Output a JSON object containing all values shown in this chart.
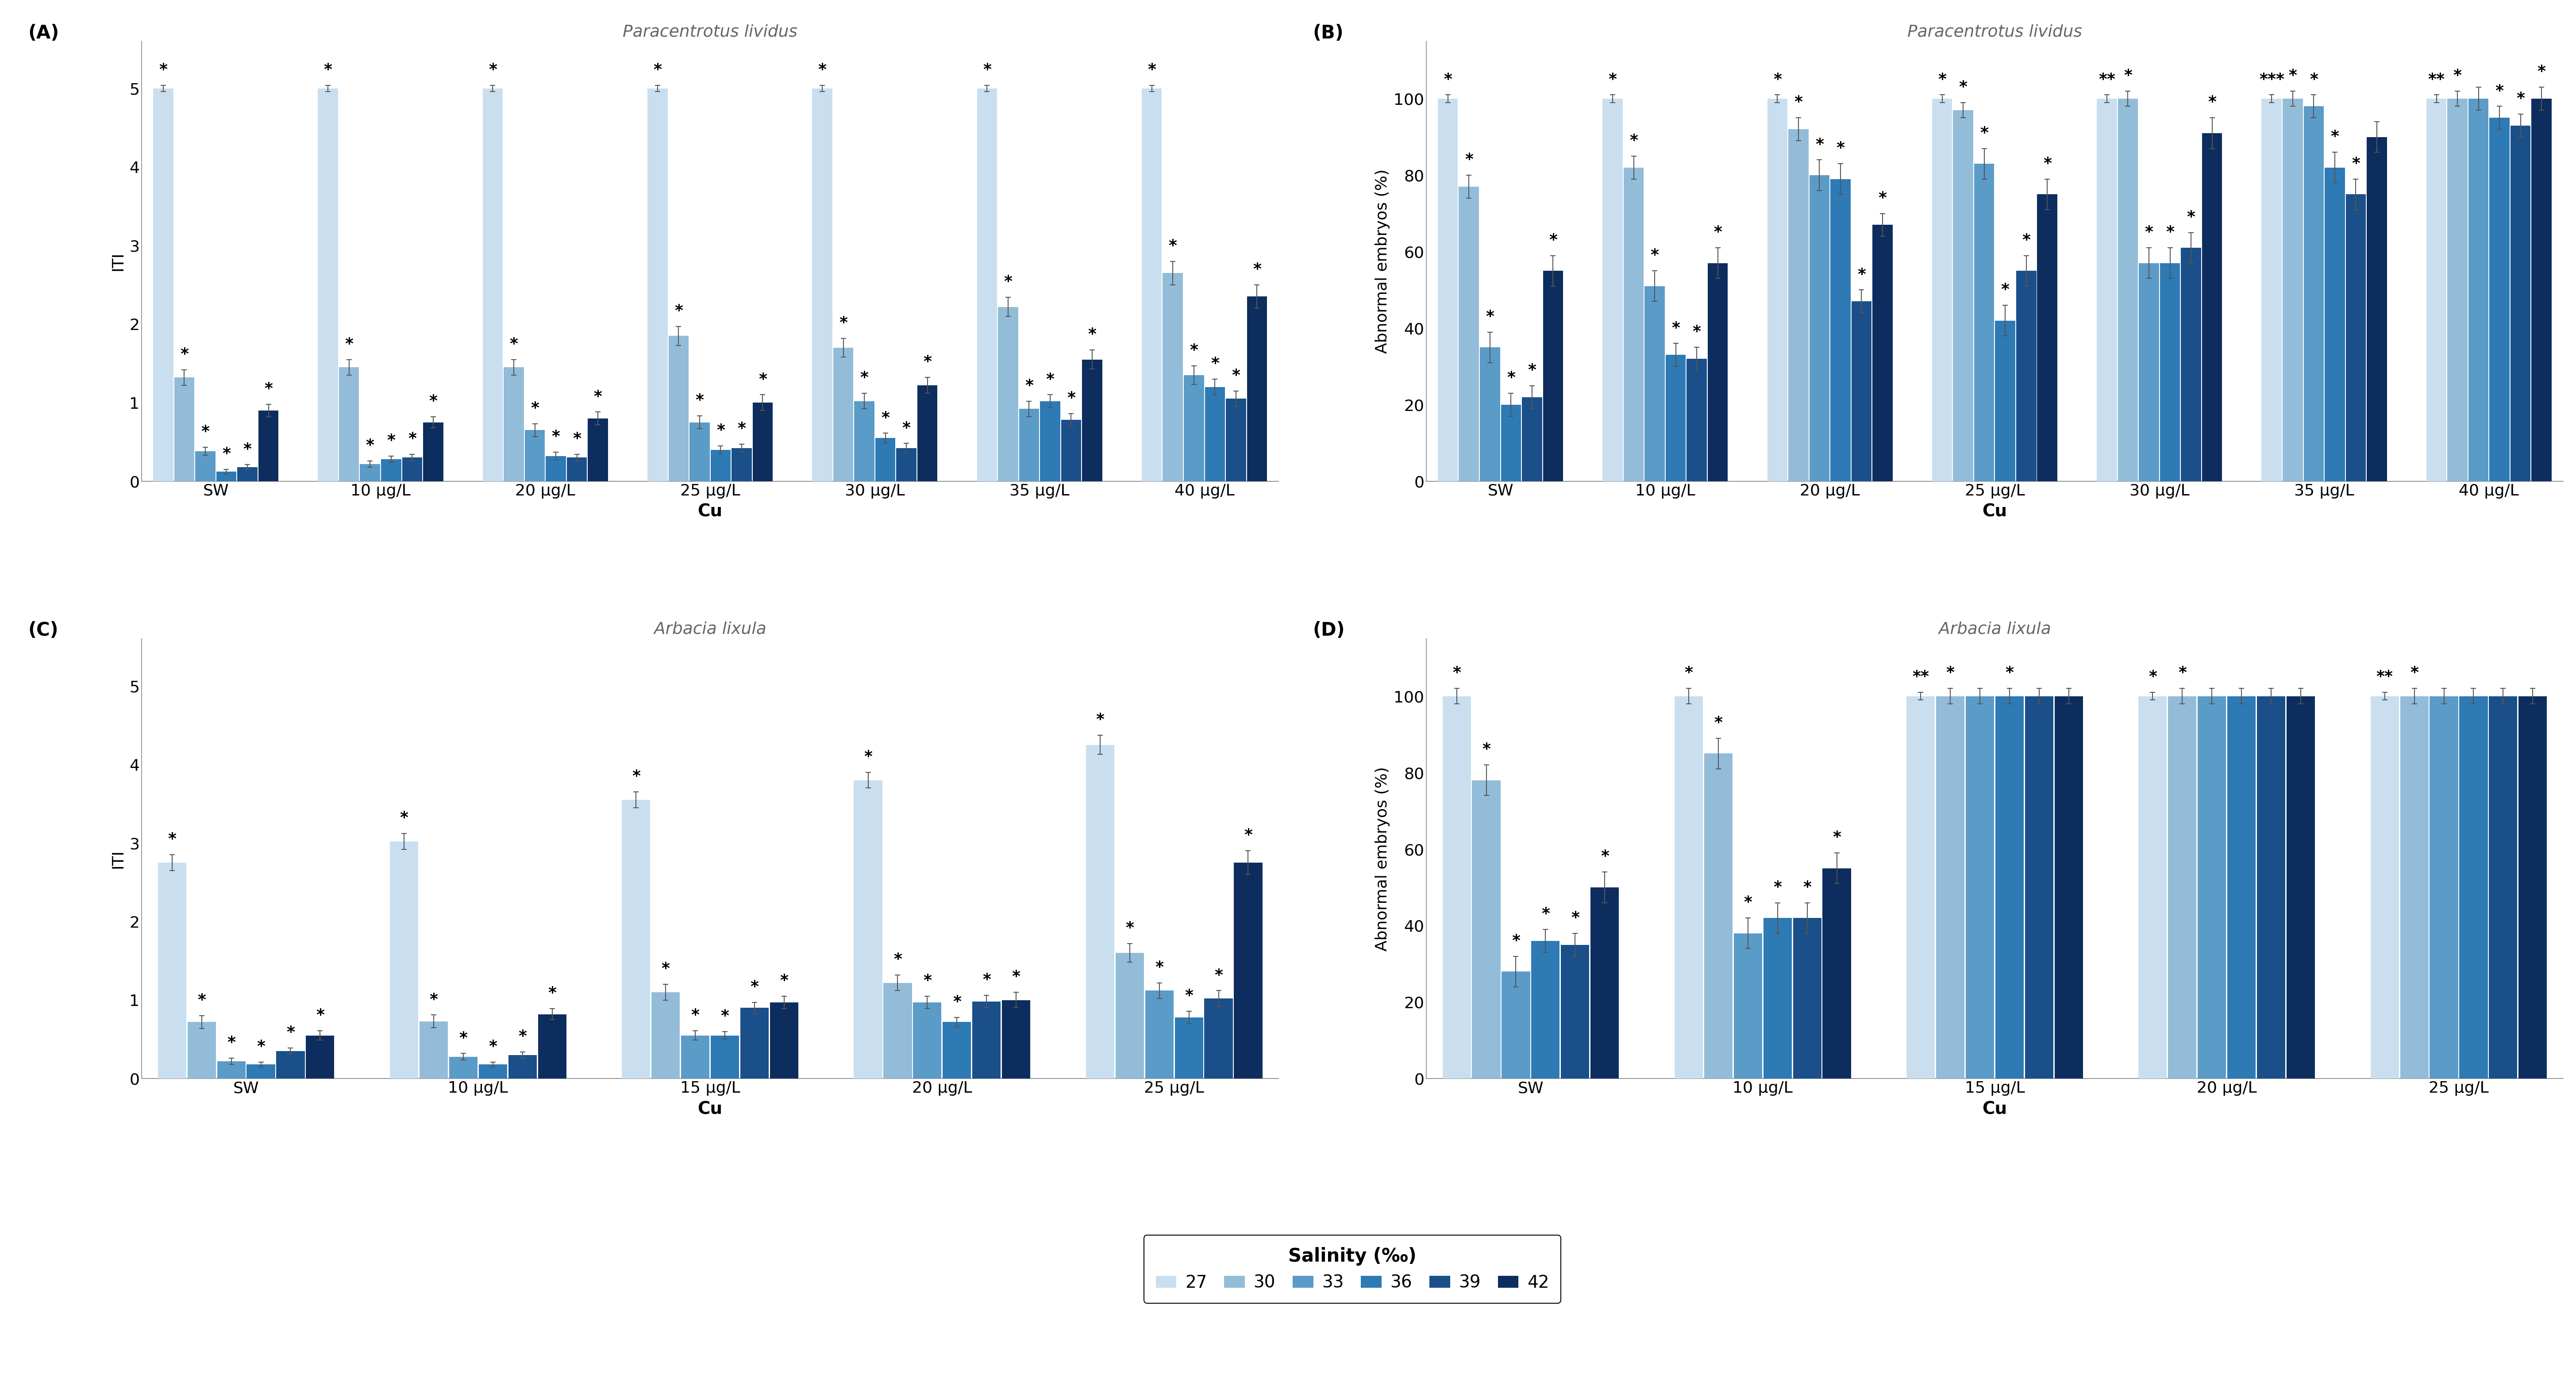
{
  "colors": {
    "27": "#c9dff0",
    "30": "#93bcd8",
    "33": "#5b9bc8",
    "36": "#2d7ab5",
    "39": "#1a4f8a",
    "42": "#0d2d5e"
  },
  "panel_A": {
    "title": "Paracentrotus lividus",
    "xlabel": "Cu",
    "ylabel": "ITI",
    "ylim": [
      0,
      5.6
    ],
    "yticks": [
      0,
      1,
      2,
      3,
      4,
      5
    ],
    "groups": [
      "SW",
      "10 μg/L",
      "20 μg/L",
      "25 μg/L",
      "30 μg/L",
      "35 μg/L",
      "40 μg/L"
    ],
    "values": {
      "27": [
        5.0,
        5.0,
        5.0,
        5.0,
        5.0,
        5.0,
        5.0
      ],
      "30": [
        1.32,
        1.45,
        1.45,
        1.85,
        1.7,
        2.22,
        2.65
      ],
      "33": [
        0.38,
        0.22,
        0.65,
        0.75,
        1.02,
        0.92,
        1.35
      ],
      "36": [
        0.12,
        0.28,
        0.32,
        0.4,
        0.55,
        1.02,
        1.2
      ],
      "39": [
        0.18,
        0.3,
        0.3,
        0.42,
        0.42,
        0.78,
        1.05
      ],
      "42": [
        0.9,
        0.75,
        0.8,
        1.0,
        1.22,
        1.55,
        2.35
      ]
    },
    "errors": {
      "27": [
        0.04,
        0.04,
        0.04,
        0.04,
        0.04,
        0.04,
        0.04
      ],
      "30": [
        0.1,
        0.1,
        0.1,
        0.12,
        0.12,
        0.12,
        0.15
      ],
      "33": [
        0.05,
        0.04,
        0.08,
        0.08,
        0.1,
        0.1,
        0.12
      ],
      "36": [
        0.03,
        0.04,
        0.05,
        0.05,
        0.06,
        0.08,
        0.1
      ],
      "39": [
        0.03,
        0.04,
        0.04,
        0.05,
        0.06,
        0.08,
        0.1
      ],
      "42": [
        0.08,
        0.07,
        0.08,
        0.1,
        0.1,
        0.12,
        0.15
      ]
    },
    "stars": {
      "27": [
        "*",
        "*",
        "*",
        "*",
        "*",
        "*",
        "*"
      ],
      "30": [
        "*",
        "*",
        "*",
        "*",
        "*",
        "*",
        "*"
      ],
      "33": [
        "*",
        "*",
        "*",
        "*",
        "*",
        "*",
        "*"
      ],
      "36": [
        "*",
        "*",
        "*",
        "*",
        "*",
        "*",
        "*"
      ],
      "39": [
        "*",
        "*",
        "*",
        "*",
        "*",
        "*",
        "*"
      ],
      "42": [
        "*",
        "*",
        "*",
        "*",
        "*",
        "*",
        "*"
      ]
    }
  },
  "panel_B": {
    "title": "Paracentrotus lividus",
    "xlabel": "Cu",
    "ylabel": "Abnormal embryos (%)",
    "ylim": [
      0,
      115
    ],
    "yticks": [
      0,
      20,
      40,
      60,
      80,
      100
    ],
    "groups": [
      "SW",
      "10 μg/L",
      "20 μg/L",
      "25 μg/L",
      "30 μg/L",
      "35 μg/L",
      "40 μg/L"
    ],
    "values": {
      "27": [
        100,
        100,
        100,
        100,
        100,
        100,
        100
      ],
      "30": [
        77,
        82,
        92,
        97,
        100,
        100,
        100
      ],
      "33": [
        35,
        51,
        80,
        83,
        57,
        98,
        100
      ],
      "36": [
        20,
        33,
        79,
        42,
        57,
        82,
        95
      ],
      "39": [
        22,
        32,
        47,
        55,
        61,
        75,
        93
      ],
      "42": [
        55,
        57,
        67,
        75,
        91,
        90,
        100
      ]
    },
    "errors": {
      "27": [
        1,
        1,
        1,
        1,
        1,
        1,
        1
      ],
      "30": [
        3,
        3,
        3,
        2,
        2,
        2,
        2
      ],
      "33": [
        4,
        4,
        4,
        4,
        4,
        3,
        3
      ],
      "36": [
        3,
        3,
        4,
        4,
        4,
        4,
        3
      ],
      "39": [
        3,
        3,
        3,
        4,
        4,
        4,
        3
      ],
      "42": [
        4,
        4,
        3,
        4,
        4,
        4,
        3
      ]
    },
    "stars": {
      "27": [
        "*",
        "*",
        "*",
        "*",
        "**",
        "***",
        "**"
      ],
      "30": [
        "*",
        "*",
        "*",
        "*",
        "*",
        "*",
        "*"
      ],
      "33": [
        "*",
        "*",
        "*",
        "*",
        "*",
        "*",
        ""
      ],
      "36": [
        "*",
        "*",
        "*",
        "*",
        "*",
        "*",
        "*"
      ],
      "39": [
        "*",
        "*",
        "*",
        "*",
        "*",
        "*",
        "*"
      ],
      "42": [
        "*",
        "*",
        "*",
        "*",
        "*",
        "",
        "*"
      ]
    }
  },
  "panel_C": {
    "title": "Arbacia lixula",
    "xlabel": "Cu",
    "ylabel": "ITI",
    "ylim": [
      0,
      5.6
    ],
    "yticks": [
      0,
      1,
      2,
      3,
      4,
      5
    ],
    "groups": [
      "SW",
      "10 μg/L",
      "15 μg/L",
      "20 μg/L",
      "25 μg/L"
    ],
    "values": {
      "27": [
        2.75,
        3.02,
        3.55,
        3.8,
        4.25
      ],
      "30": [
        0.72,
        0.73,
        1.1,
        1.22,
        1.6
      ],
      "33": [
        0.22,
        0.28,
        0.55,
        0.97,
        1.12
      ],
      "36": [
        0.18,
        0.18,
        0.55,
        0.72,
        0.78
      ],
      "39": [
        0.35,
        0.3,
        0.9,
        0.98,
        1.02
      ],
      "42": [
        0.55,
        0.82,
        0.97,
        1.0,
        2.75
      ]
    },
    "errors": {
      "27": [
        0.1,
        0.1,
        0.1,
        0.1,
        0.12
      ],
      "30": [
        0.08,
        0.08,
        0.1,
        0.1,
        0.12
      ],
      "33": [
        0.04,
        0.04,
        0.06,
        0.08,
        0.1
      ],
      "36": [
        0.03,
        0.03,
        0.05,
        0.06,
        0.08
      ],
      "39": [
        0.04,
        0.04,
        0.07,
        0.08,
        0.1
      ],
      "42": [
        0.06,
        0.07,
        0.08,
        0.1,
        0.15
      ]
    },
    "stars": {
      "27": [
        "*",
        "*",
        "*",
        "*",
        "*"
      ],
      "30": [
        "*",
        "*",
        "*",
        "*",
        "*"
      ],
      "33": [
        "*",
        "*",
        "*",
        "*",
        "*"
      ],
      "36": [
        "*",
        "*",
        "*",
        "*",
        "*"
      ],
      "39": [
        "*",
        "*",
        "*",
        "*",
        "*"
      ],
      "42": [
        "*",
        "*",
        "*",
        "*",
        "*"
      ]
    }
  },
  "panel_D": {
    "title": "Arbacia lixula",
    "xlabel": "Cu",
    "ylabel": "Abnormal embryos (%)",
    "ylim": [
      0,
      115
    ],
    "yticks": [
      0,
      20,
      40,
      60,
      80,
      100
    ],
    "groups": [
      "SW",
      "10 μg/L",
      "15 μg/L",
      "20 μg/L",
      "25 μg/L"
    ],
    "values": {
      "27": [
        100,
        100,
        100,
        100,
        100
      ],
      "30": [
        78,
        85,
        100,
        100,
        100
      ],
      "33": [
        28,
        38,
        100,
        100,
        100
      ],
      "36": [
        36,
        42,
        100,
        100,
        100
      ],
      "39": [
        35,
        42,
        100,
        100,
        100
      ],
      "42": [
        50,
        55,
        100,
        100,
        100
      ]
    },
    "errors": {
      "27": [
        2,
        2,
        1,
        1,
        1
      ],
      "30": [
        4,
        4,
        2,
        2,
        2
      ],
      "33": [
        4,
        4,
        2,
        2,
        2
      ],
      "36": [
        3,
        4,
        2,
        2,
        2
      ],
      "39": [
        3,
        4,
        2,
        2,
        2
      ],
      "42": [
        4,
        4,
        2,
        2,
        2
      ]
    },
    "stars": {
      "27": [
        "*",
        "*",
        "**",
        "*",
        "**"
      ],
      "30": [
        "*",
        "*",
        "*",
        "*",
        "*"
      ],
      "33": [
        "*",
        "*",
        "",
        "",
        ""
      ],
      "36": [
        "*",
        "*",
        "*",
        "",
        ""
      ],
      "39": [
        "*",
        "*",
        "",
        "",
        ""
      ],
      "42": [
        "*",
        "*",
        "",
        "",
        ""
      ]
    }
  },
  "legend": {
    "title": "Salinity (‰)",
    "labels": [
      "27",
      "30",
      "33",
      "36",
      "39",
      "42"
    ]
  }
}
